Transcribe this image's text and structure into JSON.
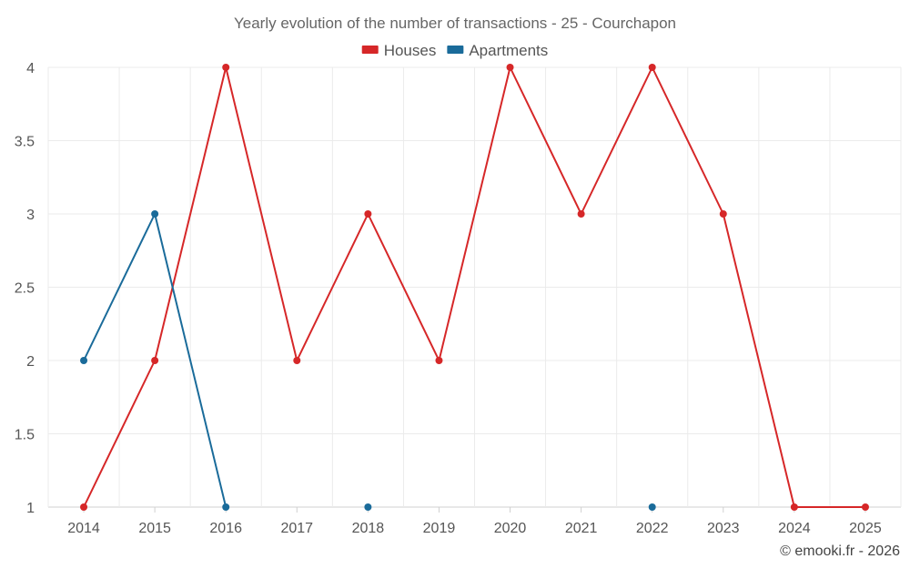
{
  "chart_data": {
    "type": "line",
    "title": "Yearly evolution of the number of transactions - 25 - Courchapon",
    "xlabel": "",
    "ylabel": "",
    "categories": [
      "2014",
      "2015",
      "2016",
      "2017",
      "2018",
      "2019",
      "2020",
      "2021",
      "2022",
      "2023",
      "2024",
      "2025"
    ],
    "ylim": [
      1,
      4
    ],
    "yticks": [
      1,
      1.5,
      2,
      2.5,
      3,
      3.5,
      4
    ],
    "ytick_labels": [
      "1",
      "1.5",
      "2",
      "2.5",
      "3",
      "3.5",
      "4"
    ],
    "grid": true,
    "legend_position": "top-center",
    "series": [
      {
        "name": "Houses",
        "color": "#d62728",
        "values": [
          1,
          2,
          4,
          2,
          3,
          2,
          4,
          3,
          4,
          3,
          1,
          1
        ]
      },
      {
        "name": "Apartments",
        "color": "#1a6b9a",
        "values": [
          2,
          3,
          1,
          null,
          1,
          null,
          null,
          null,
          1,
          null,
          null,
          null
        ]
      }
    ]
  },
  "credit": "© emooki.fr - 2026"
}
